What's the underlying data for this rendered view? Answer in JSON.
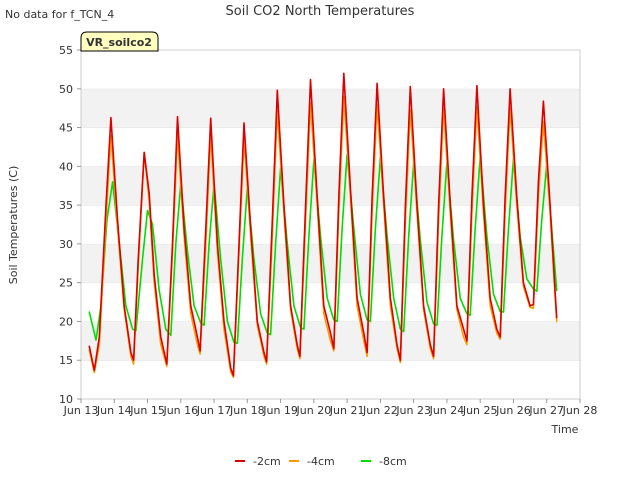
{
  "header": {
    "no_data_note": "No data for f_TCN_4"
  },
  "chart_data": {
    "type": "line",
    "title": "Soil CO2 North Temperatures",
    "xlabel": "Time",
    "ylabel": "Soil Temperatures (C)",
    "ylim": [
      10,
      55
    ],
    "xlim": [
      13,
      28
    ],
    "yticks": [
      10,
      15,
      20,
      25,
      30,
      35,
      40,
      45,
      50,
      55
    ],
    "xticks": [
      {
        "value": 13,
        "label": "Jun 13"
      },
      {
        "value": 14,
        "label": "Jun 14"
      },
      {
        "value": 15,
        "label": "Jun 15"
      },
      {
        "value": 16,
        "label": "Jun 16"
      },
      {
        "value": 17,
        "label": "Jun 17"
      },
      {
        "value": 18,
        "label": "Jun 18"
      },
      {
        "value": 19,
        "label": "Jun 19"
      },
      {
        "value": 20,
        "label": "Jun 20"
      },
      {
        "value": 21,
        "label": "Jun 21"
      },
      {
        "value": 22,
        "label": "Jun 22"
      },
      {
        "value": 23,
        "label": "Jun 23"
      },
      {
        "value": 24,
        "label": "Jun 24"
      },
      {
        "value": 25,
        "label": "Jun 25"
      },
      {
        "value": 26,
        "label": "Jun 26"
      },
      {
        "value": 27,
        "label": "Jun 27"
      },
      {
        "value": 28,
        "label": "Jun 28"
      }
    ],
    "grid": "horizontal alternating bands",
    "legend_position": "bottom-center",
    "annotation": "VR_soilco2",
    "series": [
      {
        "name": "-2cm",
        "color": "#dd0000",
        "points": [
          [
            13.25,
            16.8
          ],
          [
            13.4,
            13.7
          ],
          [
            13.55,
            18.0
          ],
          [
            13.75,
            35.0
          ],
          [
            13.9,
            46.3
          ],
          [
            14.1,
            33.0
          ],
          [
            14.3,
            22.0
          ],
          [
            14.5,
            16.0
          ],
          [
            14.58,
            15.0
          ],
          [
            14.72,
            28.0
          ],
          [
            14.9,
            41.8
          ],
          [
            15.05,
            36.5
          ],
          [
            15.2,
            26.0
          ],
          [
            15.4,
            18.0
          ],
          [
            15.58,
            14.5
          ],
          [
            15.75,
            30.0
          ],
          [
            15.9,
            46.4
          ],
          [
            16.1,
            32.0
          ],
          [
            16.3,
            22.0
          ],
          [
            16.5,
            18.0
          ],
          [
            16.58,
            16.2
          ],
          [
            16.75,
            32.0
          ],
          [
            16.9,
            46.2
          ],
          [
            17.1,
            30.0
          ],
          [
            17.3,
            20.0
          ],
          [
            17.5,
            14.0
          ],
          [
            17.58,
            13.0
          ],
          [
            17.75,
            30.0
          ],
          [
            17.9,
            45.6
          ],
          [
            18.1,
            32.0
          ],
          [
            18.3,
            20.0
          ],
          [
            18.5,
            16.0
          ],
          [
            18.58,
            14.8
          ],
          [
            18.75,
            33.0
          ],
          [
            18.9,
            49.8
          ],
          [
            19.1,
            35.0
          ],
          [
            19.3,
            22.0
          ],
          [
            19.5,
            17.0
          ],
          [
            19.58,
            15.5
          ],
          [
            19.75,
            35.0
          ],
          [
            19.9,
            51.2
          ],
          [
            20.1,
            36.0
          ],
          [
            20.3,
            22.0
          ],
          [
            20.5,
            18.5
          ],
          [
            20.6,
            16.5
          ],
          [
            20.75,
            36.0
          ],
          [
            20.9,
            52.0
          ],
          [
            21.1,
            37.0
          ],
          [
            21.3,
            23.0
          ],
          [
            21.5,
            18.5
          ],
          [
            21.6,
            16.0
          ],
          [
            21.75,
            36.0
          ],
          [
            21.9,
            50.7
          ],
          [
            22.1,
            36.0
          ],
          [
            22.3,
            23.0
          ],
          [
            22.5,
            17.0
          ],
          [
            22.6,
            15.0
          ],
          [
            22.75,
            35.0
          ],
          [
            22.9,
            50.3
          ],
          [
            23.1,
            35.0
          ],
          [
            23.3,
            22.0
          ],
          [
            23.5,
            17.0
          ],
          [
            23.6,
            15.5
          ],
          [
            23.75,
            35.0
          ],
          [
            23.9,
            50.0
          ],
          [
            24.1,
            35.0
          ],
          [
            24.3,
            22.0
          ],
          [
            24.5,
            19.0
          ],
          [
            24.6,
            17.5
          ],
          [
            24.75,
            36.0
          ],
          [
            24.9,
            50.4
          ],
          [
            25.1,
            35.0
          ],
          [
            25.3,
            23.0
          ],
          [
            25.5,
            19.0
          ],
          [
            25.6,
            18.0
          ],
          [
            25.75,
            36.0
          ],
          [
            25.9,
            50.0
          ],
          [
            26.1,
            36.0
          ],
          [
            26.3,
            25.0
          ],
          [
            26.5,
            22.0
          ],
          [
            26.6,
            22.2
          ],
          [
            26.75,
            38.0
          ],
          [
            26.9,
            48.4
          ],
          [
            27.1,
            35.0
          ],
          [
            27.25,
            24.0
          ],
          [
            27.3,
            20.5
          ]
        ]
      },
      {
        "name": "-4cm",
        "color": "#ff9900",
        "points": [
          [
            13.25,
            16.3
          ],
          [
            13.4,
            13.4
          ],
          [
            13.55,
            17.0
          ],
          [
            13.75,
            33.0
          ],
          [
            13.9,
            44.0
          ],
          [
            14.1,
            32.0
          ],
          [
            14.3,
            21.5
          ],
          [
            14.5,
            15.5
          ],
          [
            14.58,
            14.5
          ],
          [
            14.72,
            27.0
          ],
          [
            14.9,
            41.8
          ],
          [
            15.05,
            35.5
          ],
          [
            15.2,
            25.0
          ],
          [
            15.4,
            17.0
          ],
          [
            15.58,
            14.2
          ],
          [
            15.75,
            29.0
          ],
          [
            15.9,
            44.0
          ],
          [
            16.1,
            31.0
          ],
          [
            16.3,
            21.0
          ],
          [
            16.5,
            17.0
          ],
          [
            16.58,
            15.8
          ],
          [
            16.75,
            30.0
          ],
          [
            16.9,
            44.0
          ],
          [
            17.1,
            29.0
          ],
          [
            17.3,
            19.0
          ],
          [
            17.5,
            13.5
          ],
          [
            17.58,
            12.8
          ],
          [
            17.75,
            29.0
          ],
          [
            17.9,
            43.5
          ],
          [
            18.1,
            31.0
          ],
          [
            18.3,
            19.5
          ],
          [
            18.5,
            15.5
          ],
          [
            18.58,
            14.5
          ],
          [
            18.75,
            31.0
          ],
          [
            18.9,
            47.2
          ],
          [
            19.1,
            34.0
          ],
          [
            19.3,
            21.5
          ],
          [
            19.5,
            16.5
          ],
          [
            19.58,
            15.2
          ],
          [
            19.75,
            33.0
          ],
          [
            19.9,
            48.2
          ],
          [
            20.1,
            35.0
          ],
          [
            20.3,
            21.0
          ],
          [
            20.5,
            17.5
          ],
          [
            20.6,
            16.2
          ],
          [
            20.75,
            34.0
          ],
          [
            20.9,
            49.0
          ],
          [
            21.1,
            36.0
          ],
          [
            21.3,
            22.0
          ],
          [
            21.5,
            17.5
          ],
          [
            21.6,
            15.5
          ],
          [
            21.75,
            34.0
          ],
          [
            21.9,
            48.0
          ],
          [
            22.1,
            35.0
          ],
          [
            22.3,
            22.0
          ],
          [
            22.5,
            16.5
          ],
          [
            22.6,
            14.7
          ],
          [
            22.75,
            33.0
          ],
          [
            22.9,
            47.3
          ],
          [
            23.1,
            34.0
          ],
          [
            23.3,
            21.5
          ],
          [
            23.5,
            16.5
          ],
          [
            23.6,
            15.2
          ],
          [
            23.75,
            33.0
          ],
          [
            23.9,
            47.5
          ],
          [
            24.1,
            34.0
          ],
          [
            24.3,
            21.5
          ],
          [
            24.5,
            18.0
          ],
          [
            24.6,
            17.0
          ],
          [
            24.75,
            34.0
          ],
          [
            24.9,
            47.7
          ],
          [
            25.1,
            34.0
          ],
          [
            25.3,
            22.0
          ],
          [
            25.5,
            18.5
          ],
          [
            25.6,
            17.7
          ],
          [
            25.75,
            34.0
          ],
          [
            25.9,
            47.5
          ],
          [
            26.1,
            35.0
          ],
          [
            26.3,
            24.5
          ],
          [
            26.5,
            21.8
          ],
          [
            26.6,
            21.7
          ],
          [
            26.75,
            36.0
          ],
          [
            26.9,
            45.8
          ],
          [
            27.1,
            34.0
          ],
          [
            27.25,
            23.5
          ],
          [
            27.3,
            20.0
          ]
        ]
      },
      {
        "name": "-8cm",
        "color": "#00dd00",
        "points": [
          [
            13.25,
            21.2
          ],
          [
            13.45,
            17.6
          ],
          [
            13.6,
            22.0
          ],
          [
            13.78,
            33.0
          ],
          [
            13.95,
            38.0
          ],
          [
            14.15,
            30.0
          ],
          [
            14.35,
            22.0
          ],
          [
            14.55,
            19.0
          ],
          [
            14.65,
            18.8
          ],
          [
            14.85,
            28.0
          ],
          [
            15.0,
            34.3
          ],
          [
            15.15,
            32.5
          ],
          [
            15.35,
            24.0
          ],
          [
            15.55,
            19.0
          ],
          [
            15.7,
            18.2
          ],
          [
            15.85,
            30.0
          ],
          [
            16.0,
            37.8
          ],
          [
            16.2,
            29.0
          ],
          [
            16.4,
            22.0
          ],
          [
            16.6,
            19.8
          ],
          [
            16.7,
            19.5
          ],
          [
            16.85,
            30.0
          ],
          [
            17.0,
            37.8
          ],
          [
            17.2,
            28.0
          ],
          [
            17.4,
            20.0
          ],
          [
            17.6,
            17.3
          ],
          [
            17.7,
            17.2
          ],
          [
            17.85,
            28.0
          ],
          [
            18.0,
            37.2
          ],
          [
            18.2,
            28.0
          ],
          [
            18.4,
            21.0
          ],
          [
            18.6,
            18.5
          ],
          [
            18.7,
            18.3
          ],
          [
            18.85,
            30.0
          ],
          [
            19.0,
            39.8
          ],
          [
            19.2,
            30.0
          ],
          [
            19.4,
            22.0
          ],
          [
            19.6,
            19.2
          ],
          [
            19.7,
            19.0
          ],
          [
            19.85,
            31.0
          ],
          [
            20.0,
            40.9
          ],
          [
            20.2,
            31.0
          ],
          [
            20.4,
            23.0
          ],
          [
            20.6,
            20.2
          ],
          [
            20.7,
            20.0
          ],
          [
            20.85,
            32.0
          ],
          [
            21.0,
            41.5
          ],
          [
            21.2,
            32.0
          ],
          [
            21.4,
            23.5
          ],
          [
            21.6,
            20.2
          ],
          [
            21.7,
            20.0
          ],
          [
            21.85,
            32.0
          ],
          [
            22.0,
            41.2
          ],
          [
            22.2,
            31.0
          ],
          [
            22.4,
            23.0
          ],
          [
            22.6,
            19.0
          ],
          [
            22.7,
            18.7
          ],
          [
            22.85,
            31.0
          ],
          [
            23.0,
            40.5
          ],
          [
            23.2,
            30.5
          ],
          [
            23.4,
            22.5
          ],
          [
            23.6,
            19.7
          ],
          [
            23.7,
            19.5
          ],
          [
            23.85,
            31.0
          ],
          [
            24.0,
            40.5
          ],
          [
            24.2,
            30.5
          ],
          [
            24.4,
            23.0
          ],
          [
            24.6,
            21.0
          ],
          [
            24.7,
            20.8
          ],
          [
            24.85,
            32.0
          ],
          [
            25.0,
            41.3
          ],
          [
            25.2,
            31.0
          ],
          [
            25.4,
            23.5
          ],
          [
            25.6,
            21.3
          ],
          [
            25.7,
            21.2
          ],
          [
            25.85,
            32.0
          ],
          [
            26.0,
            41.0
          ],
          [
            26.2,
            31.0
          ],
          [
            26.4,
            25.5
          ],
          [
            26.6,
            24.2
          ],
          [
            26.7,
            23.9
          ],
          [
            26.85,
            33.0
          ],
          [
            27.0,
            40.2
          ],
          [
            27.15,
            32.0
          ],
          [
            27.3,
            24.0
          ]
        ]
      }
    ]
  }
}
